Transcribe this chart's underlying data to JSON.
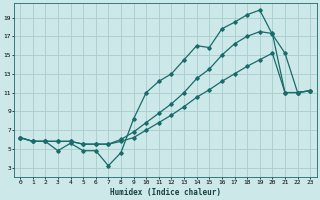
{
  "xlabel": "Humidex (Indice chaleur)",
  "bg_color": "#cce8e8",
  "grid_color": "#aacccc",
  "line_color": "#1a6b6b",
  "xlim": [
    -0.5,
    23.5
  ],
  "ylim": [
    2.0,
    20.5
  ],
  "xticks": [
    0,
    1,
    2,
    3,
    4,
    5,
    6,
    7,
    8,
    9,
    10,
    11,
    12,
    13,
    14,
    15,
    16,
    17,
    18,
    19,
    20,
    21,
    22,
    23
  ],
  "yticks": [
    3,
    5,
    7,
    9,
    11,
    13,
    15,
    17,
    19
  ],
  "curve1_x": [
    0,
    1,
    2,
    3,
    4,
    5,
    6,
    7,
    8,
    9,
    10,
    11,
    12,
    13,
    14,
    15,
    16,
    17,
    18,
    19,
    20,
    21,
    22,
    23
  ],
  "curve1_y": [
    6.2,
    5.8,
    5.8,
    4.8,
    5.6,
    4.8,
    4.8,
    3.2,
    4.6,
    8.2,
    11.0,
    12.2,
    13.0,
    14.5,
    16.0,
    15.8,
    17.8,
    18.5,
    19.3,
    19.8,
    17.2,
    15.2,
    11.0,
    11.2
  ],
  "curve2_x": [
    0,
    1,
    2,
    3,
    4,
    5,
    6,
    7,
    8,
    9,
    10,
    11,
    12,
    13,
    14,
    15,
    16,
    17,
    18,
    19,
    20,
    21,
    22,
    23
  ],
  "curve2_y": [
    6.2,
    5.8,
    5.8,
    5.8,
    5.8,
    5.5,
    5.5,
    5.5,
    6.0,
    6.8,
    7.8,
    8.8,
    9.8,
    11.0,
    12.5,
    13.5,
    15.0,
    16.2,
    17.0,
    17.5,
    17.3,
    11.0,
    11.0,
    11.2
  ],
  "curve3_x": [
    0,
    1,
    2,
    3,
    4,
    5,
    6,
    7,
    8,
    9,
    10,
    11,
    12,
    13,
    14,
    15,
    16,
    17,
    18,
    19,
    20,
    21,
    22,
    23
  ],
  "curve3_y": [
    6.2,
    5.8,
    5.8,
    5.8,
    5.8,
    5.5,
    5.5,
    5.5,
    5.8,
    6.2,
    7.0,
    7.8,
    8.6,
    9.5,
    10.5,
    11.3,
    12.2,
    13.0,
    13.8,
    14.5,
    15.2,
    11.0,
    11.0,
    11.2
  ]
}
